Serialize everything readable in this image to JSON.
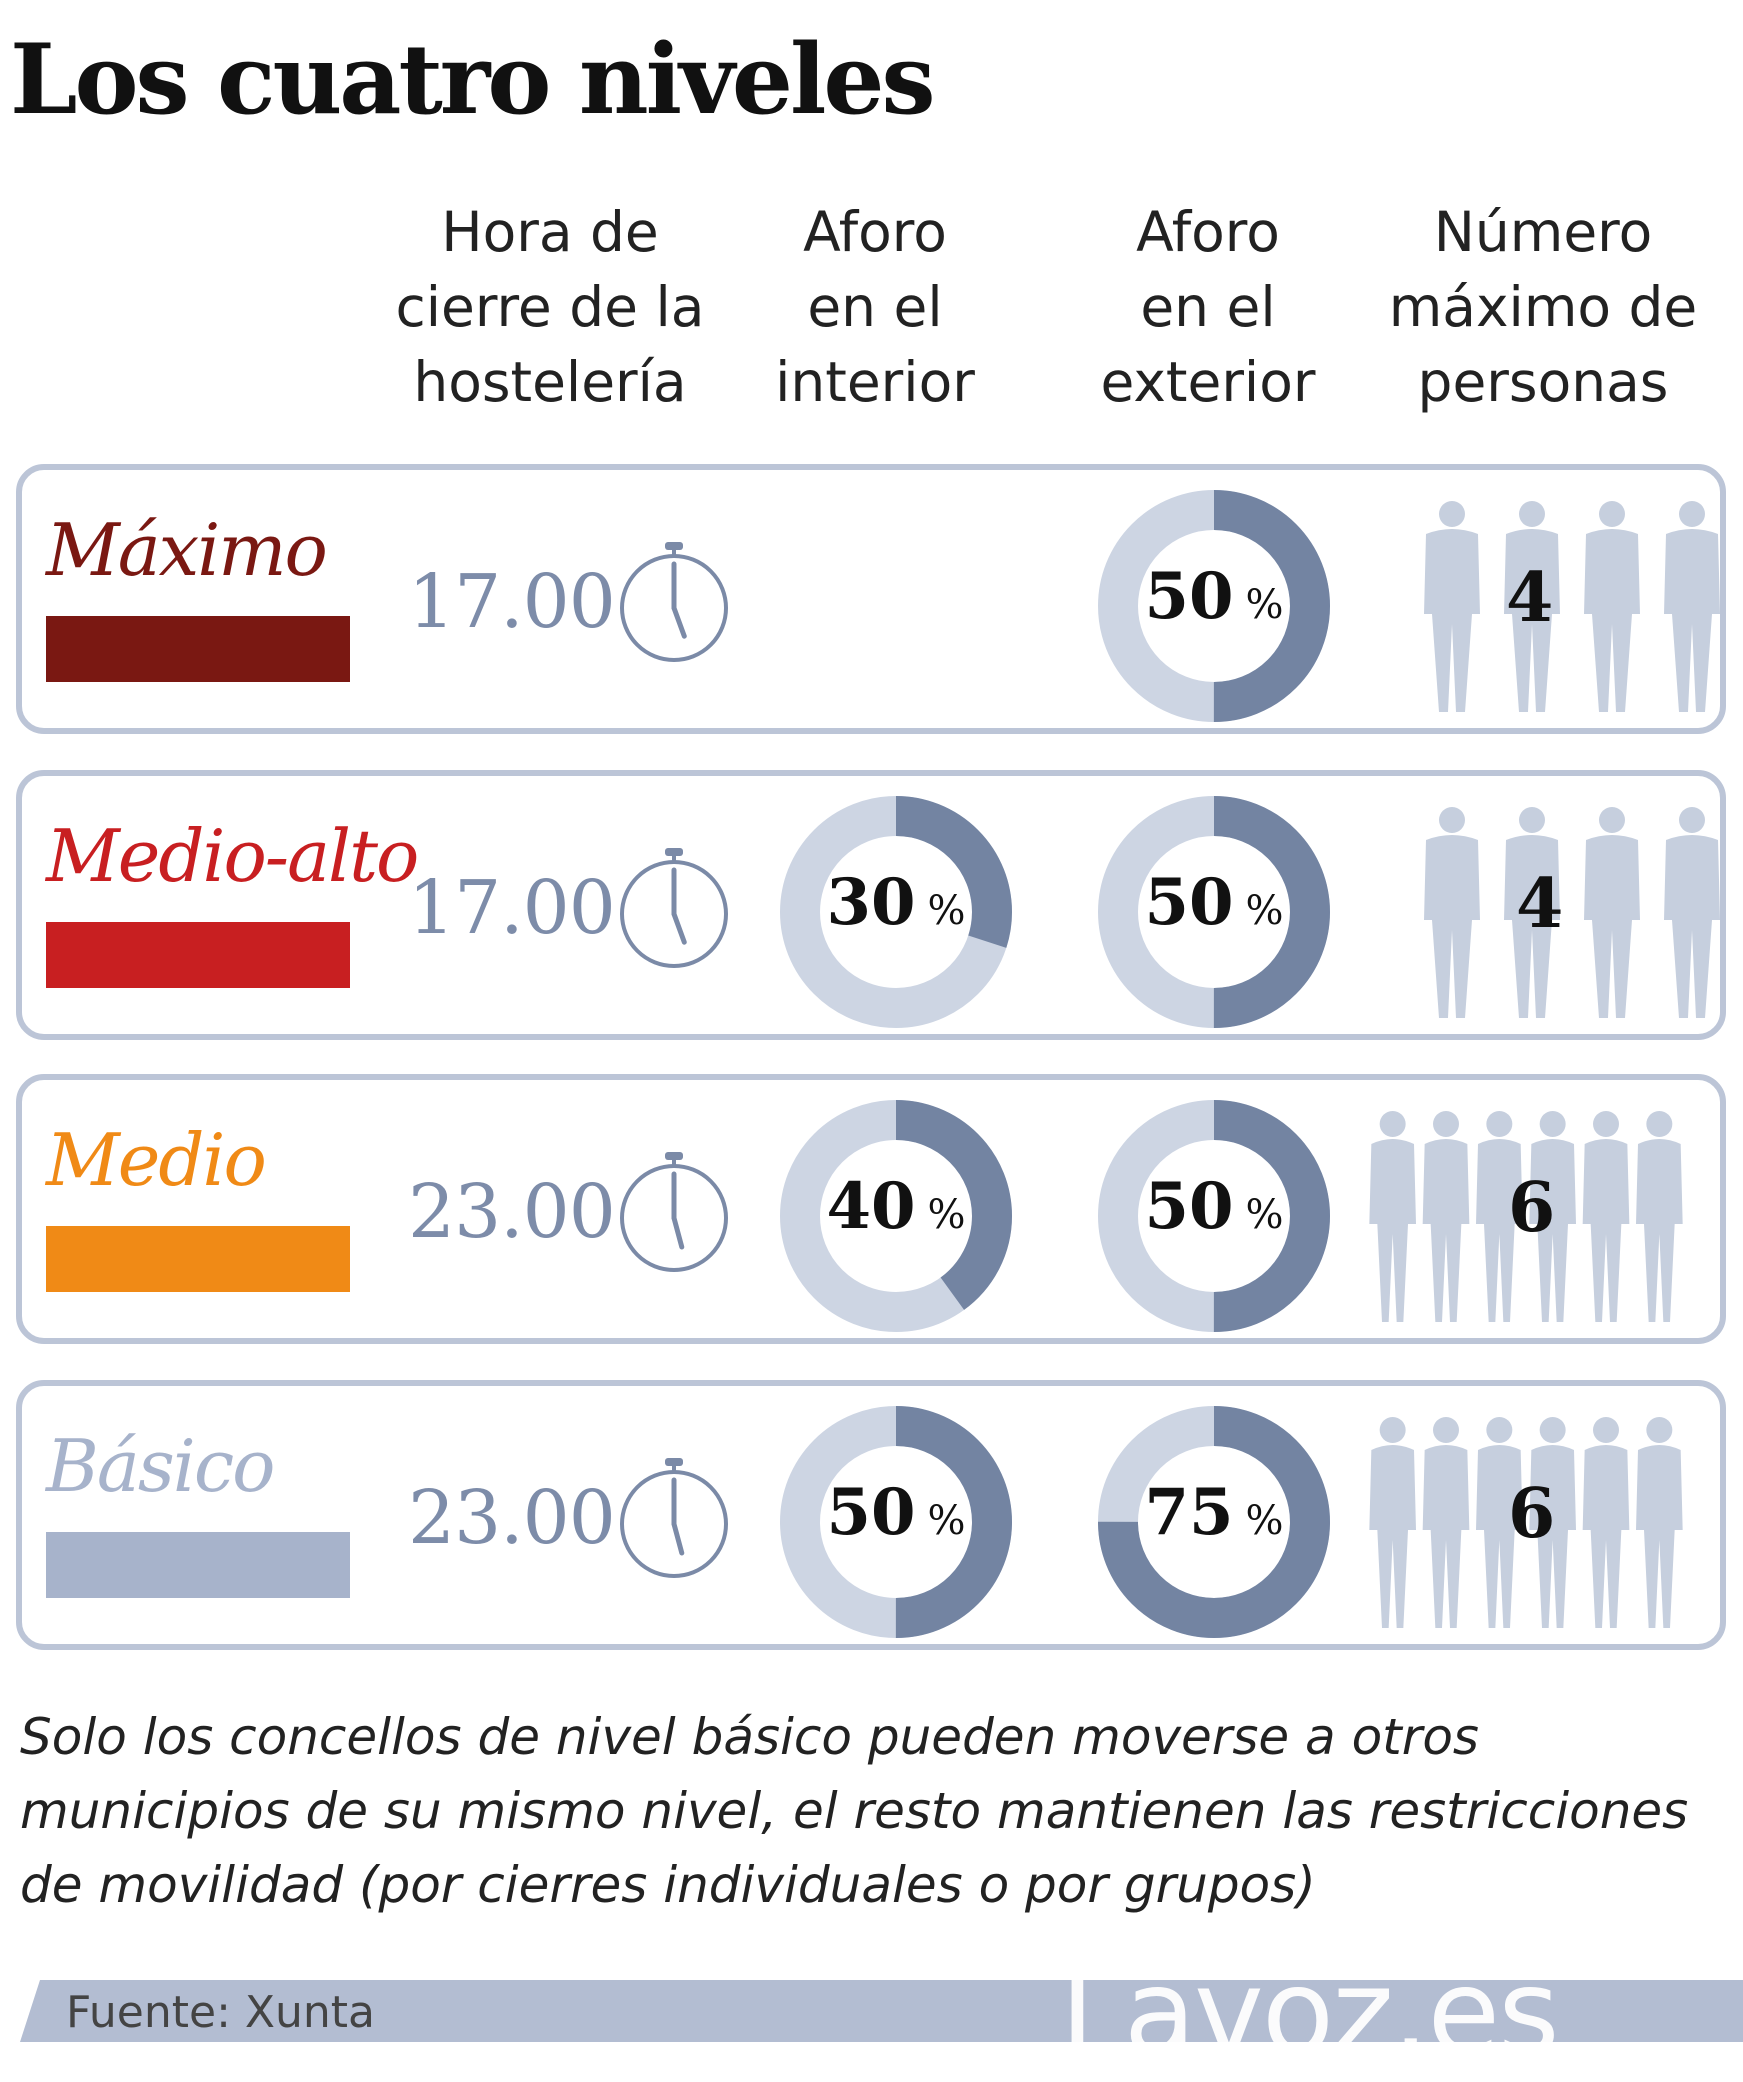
{
  "title": "Los cuatro niveles",
  "columns": {
    "hour": "Hora de\ncierre de la\nhostelería",
    "indoor": "Aforo\nen el\ninterior",
    "outdoor": "Aforo\nen el\nexterior",
    "people": "Número\nmáximo de\npersonas"
  },
  "levels": [
    {
      "name": "Máximo",
      "color": "#7a1812",
      "name_color": "#7a1812",
      "closing_hour": "17.00",
      "indoor_capacity": null,
      "outdoor_capacity": 50,
      "max_people": "4"
    },
    {
      "name": "Medio-alto",
      "color": "#c81f21",
      "name_color": "#c81f21",
      "closing_hour": "17.00",
      "indoor_capacity": 30,
      "outdoor_capacity": 50,
      "max_people": "4"
    },
    {
      "name": "Medio",
      "color": "#f08a16",
      "name_color": "#f08a16",
      "closing_hour": "23.00",
      "indoor_capacity": 40,
      "outdoor_capacity": 50,
      "max_people": "6"
    },
    {
      "name": "Básico",
      "color": "#a7b3cb",
      "name_color": "#a7b3cb",
      "closing_hour": "23.00",
      "indoor_capacity": 50,
      "outdoor_capacity": 75,
      "max_people": "6"
    }
  ],
  "percent_unit": "%",
  "colors": {
    "donut_fill": "#7384a2",
    "donut_track": "#cdd5e3",
    "silhouette": "#c6cfde",
    "border": "#bcc5d7",
    "footer": "#b3bdd2"
  },
  "note": "Solo los concellos de nivel básico pueden moverse a otros municipios de su mismo nivel, el resto mantienen las restricciones de movilidad (por cierres individuales o por grupos)",
  "source": "Fuente: Xunta",
  "brand": "Lavoz.es"
}
